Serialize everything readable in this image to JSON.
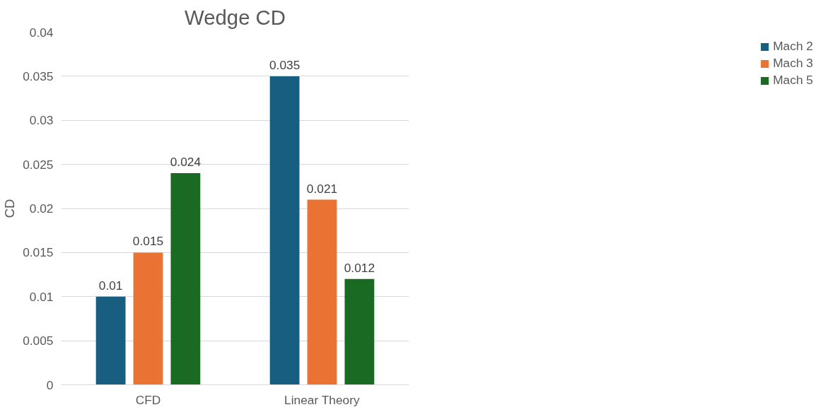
{
  "chart_data": {
    "type": "bar",
    "title": "Wedge CD",
    "ylabel": "CD",
    "categories": [
      "CFD",
      "Linear Theory"
    ],
    "series": [
      {
        "name": "Mach 2",
        "color": "#185e80",
        "values": [
          0.01,
          0.035
        ]
      },
      {
        "name": "Mach 3",
        "color": "#ea7232",
        "values": [
          0.015,
          0.021
        ]
      },
      {
        "name": "Mach 5",
        "color": "#1b6a23",
        "values": [
          0.024,
          0.012
        ]
      }
    ],
    "ylim": [
      0,
      0.04
    ],
    "yticks": [
      0,
      0.005,
      0.01,
      0.015,
      0.02,
      0.025,
      0.03,
      0.035,
      0.04
    ],
    "grid": "y",
    "legend": "right",
    "data_labels": true
  }
}
